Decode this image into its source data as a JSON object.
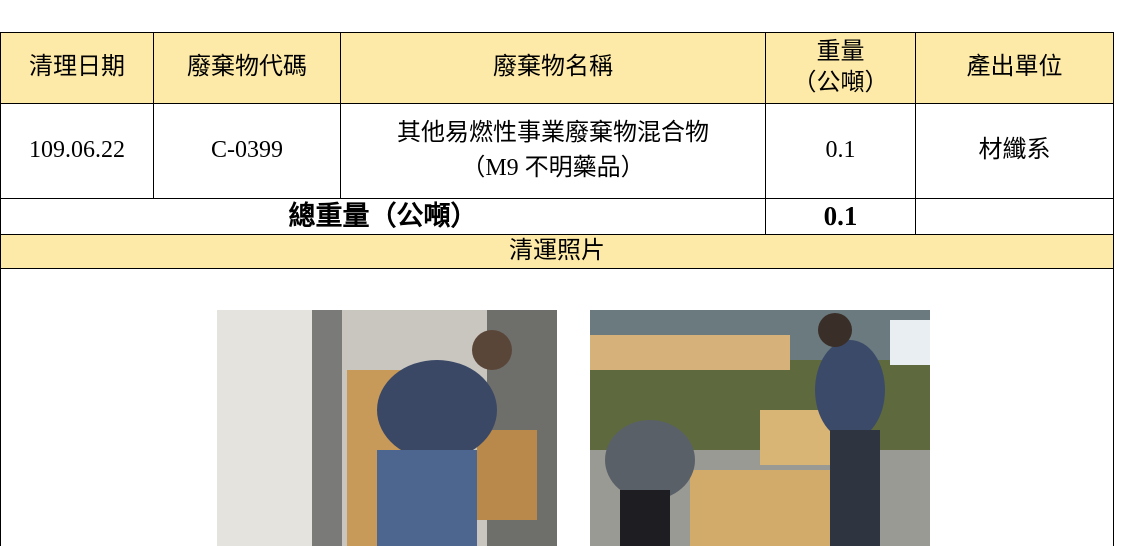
{
  "table": {
    "header": [
      "清理日期",
      "廢棄物代碼",
      "廢棄物名稱",
      "重量\n（公噸）",
      "產出單位"
    ],
    "rows": [
      [
        "109.06.22",
        "C-0399",
        "其他易燃性事業廢棄物混合物\n（M9 不明藥品）",
        "0.1",
        "材纖系"
      ]
    ],
    "total": {
      "label": "總重量（公噸）",
      "value": "0.1"
    },
    "photos": {
      "title": "清運照片"
    }
  }
}
